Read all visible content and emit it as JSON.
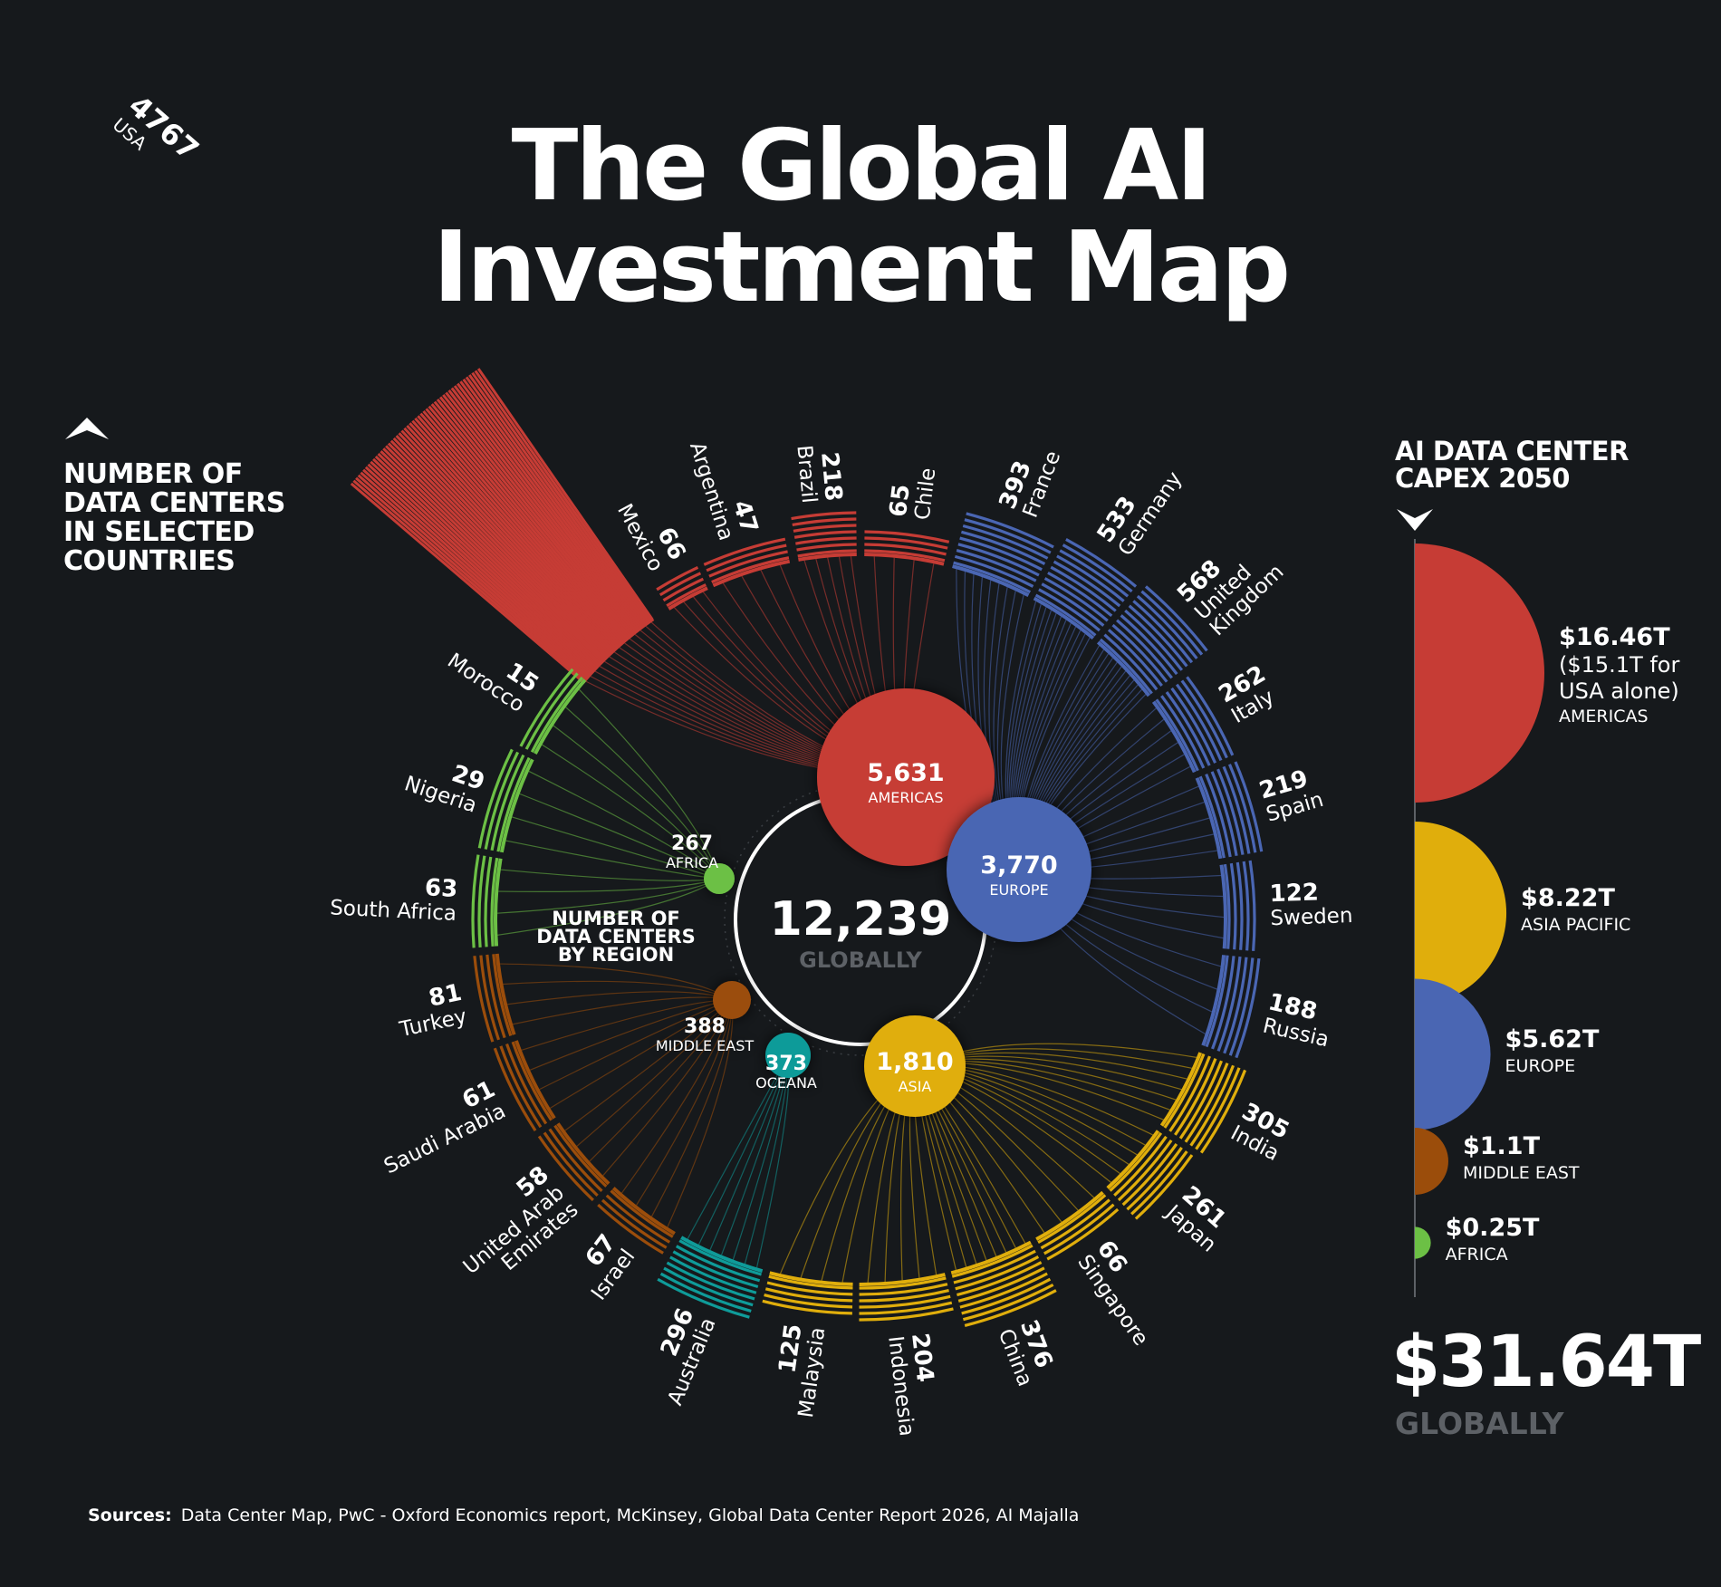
{
  "title_line1": "The Global AI",
  "title_line2": "Investment Map",
  "countries_heading": "NUMBER OF\nDATA CENTERS\nIN SELECTED\nCOUNTRIES",
  "regions_heading": "NUMBER OF\nDATA CENTERS\nBY REGION",
  "capex_heading": "AI DATA CENTER\nCAPEX 2050",
  "capex_total": "$31.64T",
  "capex_total_label": "GLOBALLY",
  "sources_label": "Sources:",
  "sources_text": "Data Center Map, PwC - Oxford Economics report, McKinsey, Global Data Center Report 2026, AI Majalla",
  "colors": {
    "background": "#16191c",
    "americas": "#c63c35",
    "europe": "#4a66b3",
    "asia": "#e0ae0c",
    "oceana": "#0f9b99",
    "middle_east": "#9b4d0b",
    "africa": "#6cc045",
    "muted": "#5d6166"
  },
  "chart_data": [
    {
      "type": "radial-bar",
      "name": "countries",
      "series": [
        {
          "country": "USA",
          "value": 4767,
          "region": "americas"
        },
        {
          "country": "Mexico",
          "value": 66,
          "region": "americas"
        },
        {
          "country": "Argentina",
          "value": 47,
          "region": "americas"
        },
        {
          "country": "Brazil",
          "value": 218,
          "region": "americas"
        },
        {
          "country": "Chile",
          "value": 65,
          "region": "americas"
        },
        {
          "country": "France",
          "value": 393,
          "region": "europe"
        },
        {
          "country": "Germany",
          "value": 533,
          "region": "europe"
        },
        {
          "country": "United Kingdom",
          "value": 568,
          "region": "europe"
        },
        {
          "country": "Italy",
          "value": 262,
          "region": "europe"
        },
        {
          "country": "Spain",
          "value": 219,
          "region": "europe"
        },
        {
          "country": "Sweden",
          "value": 122,
          "region": "europe"
        },
        {
          "country": "Russia",
          "value": 188,
          "region": "europe"
        },
        {
          "country": "India",
          "value": 305,
          "region": "asia"
        },
        {
          "country": "Japan",
          "value": 261,
          "region": "asia"
        },
        {
          "country": "Singapore",
          "value": 66,
          "region": "asia"
        },
        {
          "country": "China",
          "value": 376,
          "region": "asia"
        },
        {
          "country": "Indonesia",
          "value": 204,
          "region": "asia"
        },
        {
          "country": "Malaysia",
          "value": 125,
          "region": "asia"
        },
        {
          "country": "Australia",
          "value": 296,
          "region": "oceana"
        },
        {
          "country": "Israel",
          "value": 67,
          "region": "middle_east"
        },
        {
          "country": "United Arab Emirates",
          "value": 58,
          "region": "middle_east"
        },
        {
          "country": "Saudi Arabia",
          "value": 61,
          "region": "middle_east"
        },
        {
          "country": "Turkey",
          "value": 81,
          "region": "middle_east"
        },
        {
          "country": "South Africa",
          "value": 63,
          "region": "africa"
        },
        {
          "country": "Nigeria",
          "value": 29,
          "region": "africa"
        },
        {
          "country": "Morocco",
          "value": 15,
          "region": "africa"
        }
      ],
      "labels": {
        "USA": "USA",
        "Mexico": "Mexico",
        "Argentina": "Argentina",
        "Brazil": "Brazil",
        "Chile": "Chile",
        "France": "France",
        "Germany": "Germany",
        "United Kingdom": "United\nKingdom",
        "Italy": "Italy",
        "Spain": "Spain",
        "Sweden": "Sweden",
        "Russia": "Russia",
        "India": "India",
        "Japan": "Japan",
        "Singapore": "Singapore",
        "China": "China",
        "Indonesia": "Indonesia",
        "Malaysia": "Malaysia",
        "Australia": "Australia",
        "Israel": "Israel",
        "United Arab Emirates": "United Arab\nEmirates",
        "Saudi Arabia": "Saudi Arabia",
        "Turkey": "Turkey",
        "South Africa": "South Africa",
        "Nigeria": "Nigeria",
        "Morocco": "Morocco"
      }
    },
    {
      "type": "bubble",
      "name": "regions",
      "total": {
        "value": "12,239",
        "label": "GLOBALLY"
      },
      "series": [
        {
          "region": "AMERICAS",
          "key": "americas",
          "value": 5631,
          "display": "5,631"
        },
        {
          "region": "EUROPE",
          "key": "europe",
          "value": 3770,
          "display": "3,770"
        },
        {
          "region": "ASIA",
          "key": "asia",
          "value": 1810,
          "display": "1,810"
        },
        {
          "region": "OCEANA",
          "key": "oceana",
          "value": 373,
          "display": "373"
        },
        {
          "region": "MIDDLE EAST",
          "key": "middle_east",
          "value": 388,
          "display": "388"
        },
        {
          "region": "AFRICA",
          "key": "africa",
          "value": 267,
          "display": "267"
        }
      ]
    },
    {
      "type": "semicircle",
      "name": "capex",
      "unit": "USD trillions",
      "series": [
        {
          "region": "AMERICAS",
          "key": "americas",
          "value": 16.46,
          "display": "$16.46T",
          "note": "($15.1T for\nUSA alone)"
        },
        {
          "region": "ASIA PACIFIC",
          "key": "asia",
          "value": 8.22,
          "display": "$8.22T"
        },
        {
          "region": "EUROPE",
          "key": "europe",
          "value": 5.62,
          "display": "$5.62T"
        },
        {
          "region": "MIDDLE EAST",
          "key": "middle_east",
          "value": 1.1,
          "display": "$1.1T"
        },
        {
          "region": "AFRICA",
          "key": "africa",
          "value": 0.25,
          "display": "$0.25T"
        }
      ]
    }
  ]
}
